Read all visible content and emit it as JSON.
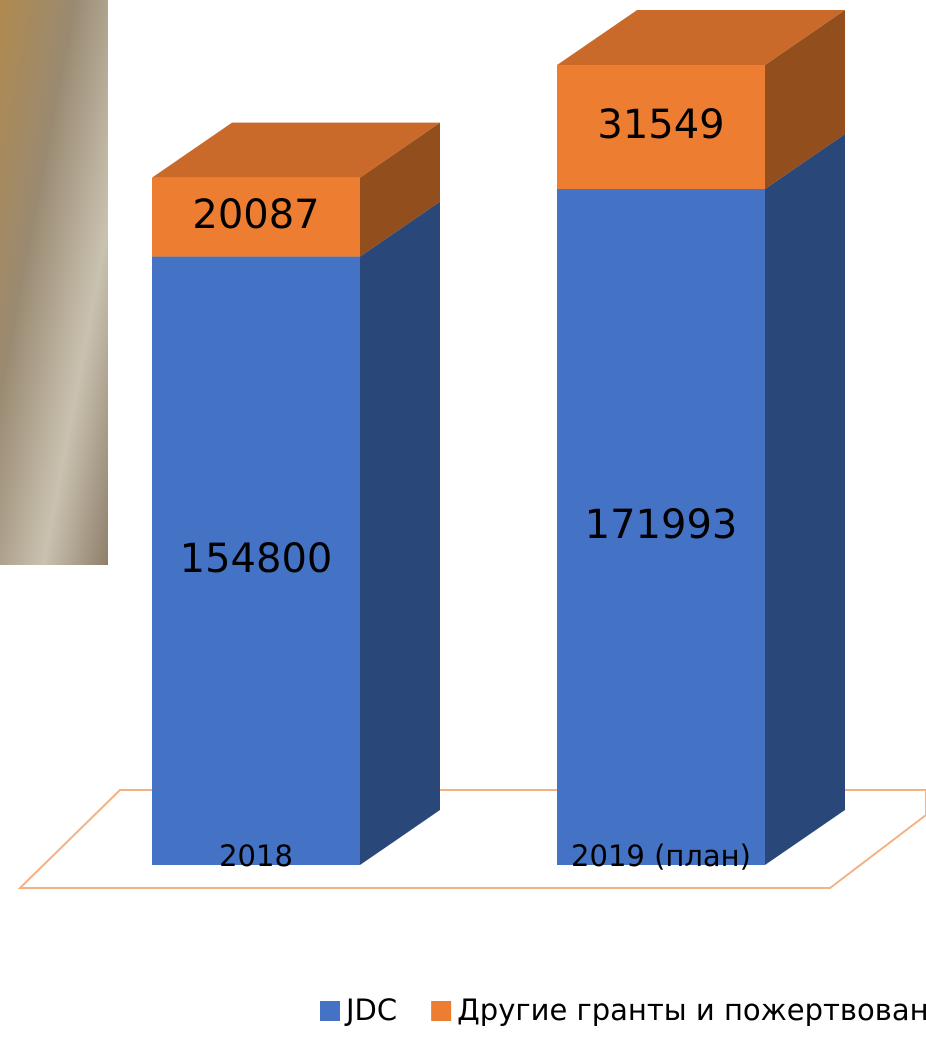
{
  "chart_data": {
    "type": "bar3d_stacked",
    "categories": [
      "2018",
      "2019 (план)"
    ],
    "series": [
      {
        "name": "JDC",
        "color": "#4472c4",
        "values": [
          154800,
          171993
        ]
      },
      {
        "name": "Другие гранты и пожертвования",
        "color": "#ed7d31",
        "values": [
          20087,
          31549
        ]
      }
    ]
  }
}
